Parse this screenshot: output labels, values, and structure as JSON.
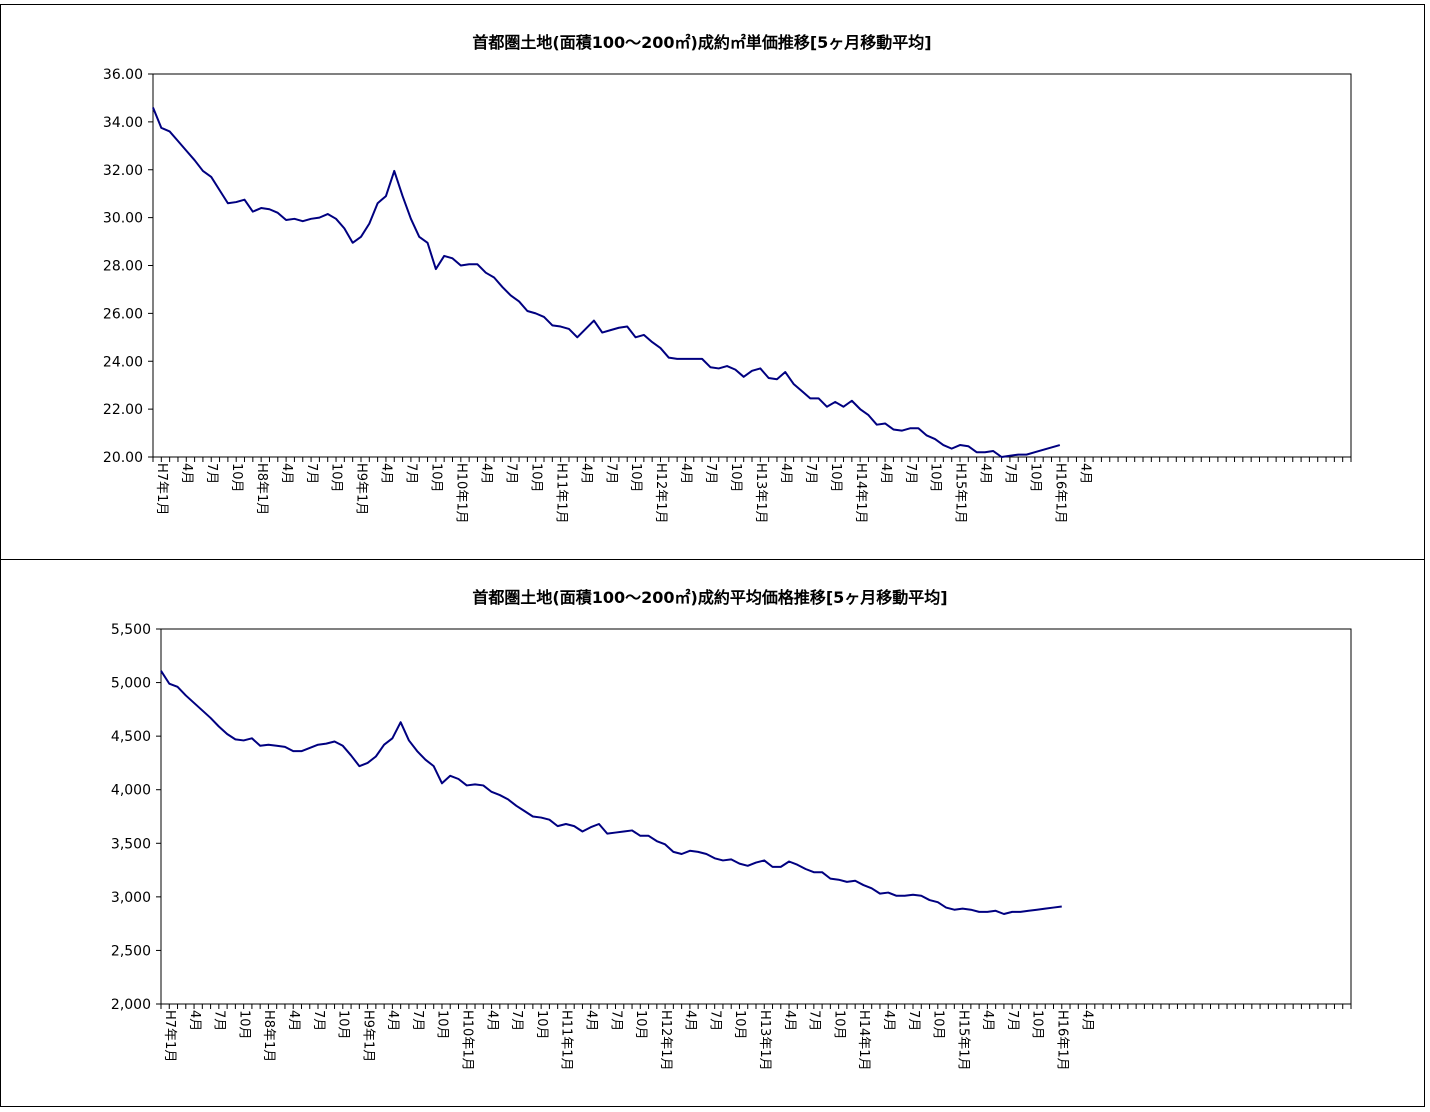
{
  "charts": [
    {
      "type": "line",
      "title": "首都圏土地(面積100～200㎡)成約㎡単価推移[5ヶ月移動平均]",
      "color": "#000080",
      "ylim": [
        20,
        36
      ],
      "y_step": 2,
      "y_tick_labels": [
        "20.00",
        "22.00",
        "24.00",
        "26.00",
        "28.00",
        "30.00",
        "32.00",
        "34.00",
        "36.00"
      ],
      "x_tick_labels": [
        "H7年1月",
        "4月",
        "7月",
        "10月",
        "H8年1月",
        "4月",
        "7月",
        "10月",
        "H9年1月",
        "4月",
        "7月",
        "10月",
        "H10年1月",
        "4月",
        "7月",
        "10月",
        "H11年1月",
        "4月",
        "7月",
        "10月",
        "H12年1月",
        "4月",
        "7月",
        "10月",
        "H13年1月",
        "4月",
        "7月",
        "10月",
        "H14年1月",
        "4月",
        "7月",
        "10月",
        "H15年1月",
        "4月",
        "7月",
        "10月",
        "H16年1月",
        "4月"
      ],
      "grid": false,
      "values": [
        34.6,
        33.75,
        33.6,
        33.2,
        32.8,
        32.4,
        31.95,
        31.7,
        31.15,
        30.6,
        30.65,
        30.75,
        30.25,
        30.4,
        30.35,
        30.2,
        29.9,
        29.95,
        29.85,
        29.95,
        30.0,
        30.15,
        29.95,
        29.55,
        28.95,
        29.2,
        29.75,
        30.6,
        30.9,
        31.95,
        30.9,
        29.95,
        29.2,
        28.95,
        27.85,
        28.4,
        28.3,
        28.0,
        28.05,
        28.05,
        27.7,
        27.5,
        27.1,
        26.75,
        26.5,
        26.1,
        26.0,
        25.85,
        25.5,
        25.45,
        25.35,
        25.0,
        25.35,
        25.7,
        25.2,
        25.3,
        25.4,
        25.45,
        25.0,
        25.1,
        24.8,
        24.55,
        24.15,
        24.1,
        24.1,
        24.1,
        24.1,
        23.75,
        23.7,
        23.8,
        23.65,
        23.35,
        23.6,
        23.7,
        23.3,
        23.25,
        23.55,
        23.05,
        22.75,
        22.45,
        22.45,
        22.1,
        22.3,
        22.1,
        22.35,
        22.0,
        21.75,
        21.35,
        21.4,
        21.15,
        21.1,
        21.2,
        21.2,
        20.9,
        20.75,
        20.5,
        20.35,
        20.5,
        20.45,
        20.2,
        20.2,
        20.25,
        20.0,
        20.05,
        20.1,
        20.1,
        20.2,
        20.3,
        20.4,
        20.5
      ]
    },
    {
      "type": "line",
      "title": "首都圏土地(面積100～200㎡)成約平均価格推移[5ヶ月移動平均]",
      "color": "#000080",
      "ylim": [
        2000,
        5500
      ],
      "y_step": 500,
      "y_tick_labels": [
        "2,000",
        "2,500",
        "3,000",
        "3,500",
        "4,000",
        "4,500",
        "5,000",
        "5,500"
      ],
      "x_tick_labels": [
        "H7年1月",
        "4月",
        "7月",
        "10月",
        "H8年1月",
        "4月",
        "7月",
        "10月",
        "H9年1月",
        "4月",
        "7月",
        "10月",
        "H10年1月",
        "4月",
        "7月",
        "10月",
        "H11年1月",
        "4月",
        "7月",
        "10月",
        "H12年1月",
        "4月",
        "7月",
        "10月",
        "H13年1月",
        "4月",
        "7月",
        "10月",
        "H14年1月",
        "4月",
        "7月",
        "10月",
        "H15年1月",
        "4月",
        "7月",
        "10月",
        "H16年1月",
        "4月"
      ],
      "grid": false,
      "values": [
        5110,
        4990,
        4960,
        4880,
        4810,
        4740,
        4670,
        4590,
        4520,
        4470,
        4460,
        4480,
        4410,
        4420,
        4410,
        4400,
        4360,
        4360,
        4390,
        4420,
        4430,
        4450,
        4410,
        4320,
        4220,
        4250,
        4310,
        4420,
        4480,
        4630,
        4460,
        4360,
        4280,
        4220,
        4060,
        4130,
        4100,
        4040,
        4050,
        4040,
        3980,
        3950,
        3910,
        3850,
        3800,
        3750,
        3740,
        3720,
        3660,
        3680,
        3660,
        3610,
        3650,
        3680,
        3590,
        3600,
        3610,
        3620,
        3570,
        3570,
        3520,
        3490,
        3420,
        3400,
        3430,
        3420,
        3400,
        3360,
        3340,
        3350,
        3310,
        3290,
        3320,
        3340,
        3280,
        3280,
        3330,
        3300,
        3260,
        3230,
        3230,
        3170,
        3160,
        3140,
        3150,
        3110,
        3080,
        3030,
        3040,
        3010,
        3010,
        3020,
        3010,
        2970,
        2950,
        2900,
        2880,
        2890,
        2880,
        2860,
        2860,
        2870,
        2840,
        2860,
        2860,
        2870,
        2880,
        2890,
        2900,
        2910
      ]
    }
  ]
}
